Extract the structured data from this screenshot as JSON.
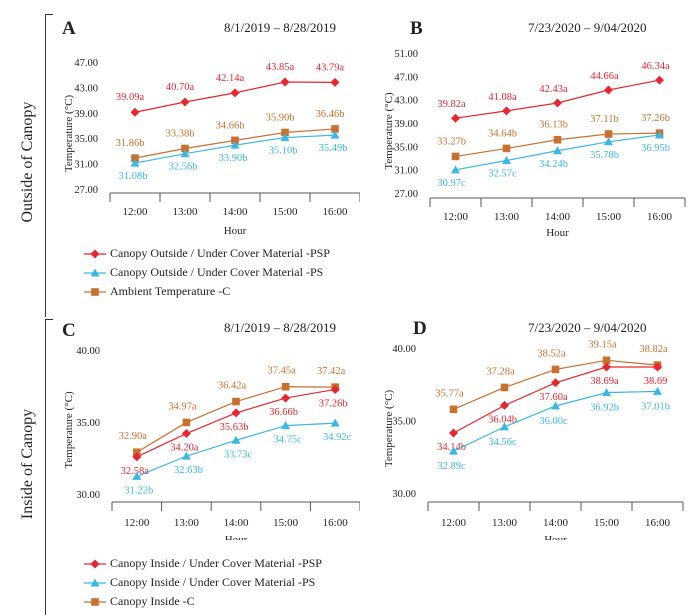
{
  "side_labels": {
    "outside": "Outside of Canopy",
    "inside": "Inside of Canopy"
  },
  "colors": {
    "PSP": "#e8262f",
    "PS": "#3bb7e4",
    "C": "#c8702e",
    "axis": "#555555"
  },
  "legend_top": [
    {
      "label": "Canopy Outside / Under Cover  Material -PSP",
      "color": "#e8262f",
      "marker": "diamond"
    },
    {
      "label": "Canopy Outside / Under Cover  Material -PS",
      "color": "#3bb7e4",
      "marker": "triangle"
    },
    {
      "label": "Ambient Temperature -C",
      "color": "#c8702e",
      "marker": "square"
    }
  ],
  "legend_bottom": [
    {
      "label": "Canopy Inside /  Under Cover  Material -PSP",
      "color": "#e8262f",
      "marker": "diamond"
    },
    {
      "label": "Canopy Inside / Under Cover  Material  -PS",
      "color": "#3bb7e4",
      "marker": "triangle"
    },
    {
      "label": "Canopy Inside -C",
      "color": "#c8702e",
      "marker": "square"
    }
  ],
  "chart_data": [
    {
      "panel": "A",
      "type": "line",
      "date_range": "8/1/2019  – 8/28/2019",
      "xlabel": "Hour",
      "ylabel": "Temperature (°C)",
      "categories": [
        "12:00",
        "13:00",
        "14:00",
        "15:00",
        "16:00"
      ],
      "ylim": [
        27,
        47
      ],
      "yticks": [
        "27.00",
        "31.00",
        "35.00",
        "39.00",
        "43.00",
        "47.00"
      ],
      "series": [
        {
          "key": "PSP",
          "values": [
            39.09,
            40.7,
            42.14,
            43.85,
            43.79
          ],
          "labels": [
            "39.09a",
            "40.70a",
            "42.14a",
            "43.85a",
            "43.79a"
          ]
        },
        {
          "key": "C",
          "values": [
            31.86,
            33.38,
            34.66,
            35.9,
            36.46
          ],
          "labels": [
            "31.86b",
            "33.38b",
            "34.66b",
            "35.90b",
            "36.46b"
          ]
        },
        {
          "key": "PS",
          "values": [
            31.08,
            32.56,
            33.9,
            35.1,
            35.49
          ],
          "labels": [
            "31.08b",
            "32.56b",
            "33.90b",
            "35.10b",
            "35.49b"
          ]
        }
      ]
    },
    {
      "panel": "B",
      "type": "line",
      "date_range": "7/23/2020  – 9/04/2020",
      "xlabel": "Hour",
      "ylabel": "Temperature (°C)",
      "categories": [
        "12:00",
        "13:00",
        "14:00",
        "15:00",
        "16:00"
      ],
      "ylim": [
        27,
        51
      ],
      "yticks": [
        "27.00",
        "31.00",
        "35.00",
        "39.00",
        "43.00",
        "47.00",
        "51.00"
      ],
      "series": [
        {
          "key": "PSP",
          "values": [
            39.82,
            41.08,
            42.43,
            44.66,
            46.34
          ],
          "labels": [
            "39.82a",
            "41.08a",
            "42.43a",
            "44.66a",
            "46.34a"
          ]
        },
        {
          "key": "C",
          "values": [
            33.27,
            34.64,
            36.13,
            37.11,
            37.26
          ],
          "labels": [
            "33.27b",
            "34.64b",
            "36.13b",
            "37.11b",
            "37.26b"
          ]
        },
        {
          "key": "PS",
          "values": [
            30.97,
            32.57,
            34.24,
            35.78,
            36.95
          ],
          "labels": [
            "30.97c",
            "32.57c",
            "34.24b",
            "35.78b",
            "36.95b"
          ]
        }
      ]
    },
    {
      "panel": "C",
      "type": "line",
      "date_range": "8/1/2019  – 8/28/2019",
      "xlabel": "Hour",
      "ylabel": "Temperature (°C)",
      "categories": [
        "12:00",
        "13:00",
        "14:00",
        "15:00",
        "16:00"
      ],
      "ylim": [
        30,
        40
      ],
      "yticks": [
        "30.00",
        "35.00",
        "40.00"
      ],
      "series": [
        {
          "key": "C",
          "values": [
            32.9,
            34.97,
            36.42,
            37.45,
            37.42
          ],
          "labels": [
            "32.90a",
            "34.97a",
            "36.42a",
            "37.45a",
            "37.42a"
          ]
        },
        {
          "key": "PSP",
          "values": [
            32.58,
            34.2,
            35.63,
            36.66,
            37.26
          ],
          "labels": [
            "32.58a",
            "34.20a",
            "35.63b",
            "36.66b",
            "37.26b"
          ]
        },
        {
          "key": "PS",
          "values": [
            31.22,
            32.63,
            33.73,
            34.75,
            34.92
          ],
          "labels": [
            "31.22b",
            "32.63b",
            "33.73c",
            "34.75c",
            "34.92c"
          ]
        }
      ]
    },
    {
      "panel": "D",
      "type": "line",
      "date_range": "7/23/2020  – 9/04/2020",
      "xlabel": "Hour",
      "ylabel": "Temperature (°C)",
      "categories": [
        "12:00",
        "13:00",
        "14:00",
        "15:00",
        "16:00"
      ],
      "ylim": [
        30,
        40
      ],
      "yticks": [
        "30.00",
        "35.00",
        "40.00"
      ],
      "series": [
        {
          "key": "C",
          "values": [
            35.77,
            37.28,
            38.52,
            39.15,
            38.82
          ],
          "labels": [
            "35.77a",
            "37.28a",
            "38.52a",
            "39.15a",
            "38.82a"
          ]
        },
        {
          "key": "PSP",
          "values": [
            34.14,
            36.04,
            37.6,
            38.69,
            38.69
          ],
          "labels": [
            "34.14b",
            "36.04b",
            "37.60a",
            "38.69a",
            "38.69"
          ]
        },
        {
          "key": "PS",
          "values": [
            32.89,
            34.56,
            36.0,
            36.92,
            37.01
          ],
          "labels": [
            "32.89c",
            "34.56c",
            "36.00c",
            "36.92b",
            "37.01b"
          ]
        }
      ]
    }
  ]
}
